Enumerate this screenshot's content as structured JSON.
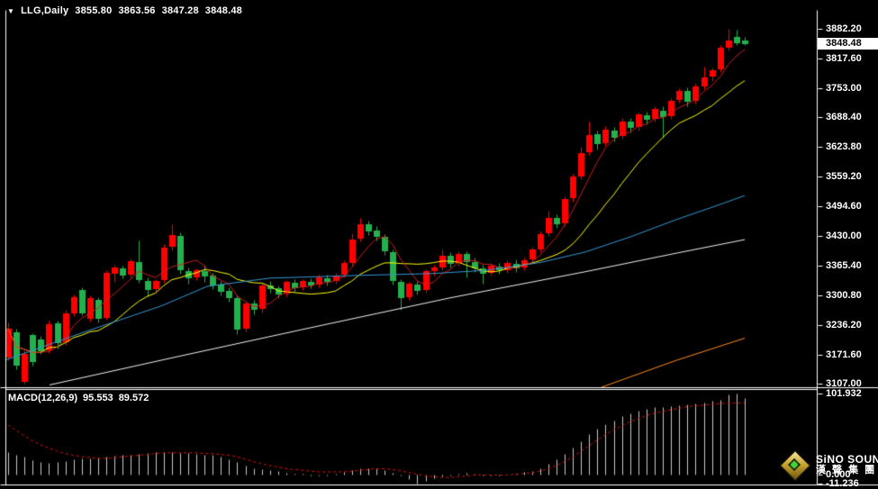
{
  "header": {
    "dropdown_arrow": "▼",
    "symbol": "LLG,Daily",
    "open": "3855.80",
    "high": "3863.56",
    "low": "3847.28",
    "close": "3848.48"
  },
  "macd_header": {
    "name": "MACD(12,26,9)",
    "main": "95.553",
    "signal": "89.572"
  },
  "price_axis": {
    "current_text": "3848.48",
    "current_value": 3848.48
  },
  "logo": {
    "line1": "SiNO SOUND",
    "line2": "漢 聲 集 團"
  },
  "chart_data": {
    "type": "candlestick+macd",
    "symbol": "LLG",
    "timeframe": "Daily",
    "grid": false,
    "price_axis_range": {
      "top": 3925.0,
      "bottom": 3100.0
    },
    "price_ticks": [
      {
        "text": "3882.20",
        "value": 3882.2
      },
      {
        "text": "3817.60",
        "value": 3817.6
      },
      {
        "text": "3753.00",
        "value": 3753.0
      },
      {
        "text": "3688.40",
        "value": 3688.4
      },
      {
        "text": "3623.80",
        "value": 3623.8
      },
      {
        "text": "3559.20",
        "value": 3559.2
      },
      {
        "text": "3494.60",
        "value": 3494.6
      },
      {
        "text": "3430.00",
        "value": 3430.0
      },
      {
        "text": "3365.40",
        "value": 3365.4
      },
      {
        "text": "3300.80",
        "value": 3300.8
      },
      {
        "text": "3236.20",
        "value": 3236.2
      },
      {
        "text": "3171.60",
        "value": 3171.6
      },
      {
        "text": "3107.00",
        "value": 3107.0
      }
    ],
    "current": {
      "open": 3855.8,
      "high": 3863.56,
      "low": 3847.28,
      "close": 3848.48
    },
    "candles": [
      [
        3165,
        3242,
        3158,
        3228
      ],
      [
        3220,
        3228,
        3140,
        3148
      ],
      [
        3112,
        3180,
        3107,
        3172
      ],
      [
        3213,
        3218,
        3148,
        3155
      ],
      [
        3205,
        3212,
        3172,
        3178
      ],
      [
        3180,
        3245,
        3175,
        3238
      ],
      [
        3240,
        3246,
        3185,
        3196
      ],
      [
        3198,
        3268,
        3192,
        3262
      ],
      [
        3262,
        3302,
        3255,
        3296
      ],
      [
        3312,
        3318,
        3258,
        3262
      ],
      [
        3250,
        3300,
        3244,
        3295
      ],
      [
        3290,
        3296,
        3242,
        3250
      ],
      [
        3252,
        3356,
        3248,
        3350
      ],
      [
        3348,
        3368,
        3330,
        3362
      ],
      [
        3360,
        3366,
        3338,
        3344
      ],
      [
        3346,
        3380,
        3340,
        3375
      ],
      [
        3374,
        3420,
        3328,
        3334
      ],
      [
        3332,
        3340,
        3298,
        3312
      ],
      [
        3314,
        3336,
        3306,
        3332
      ],
      [
        3334,
        3412,
        3328,
        3404
      ],
      [
        3406,
        3455,
        3398,
        3432
      ],
      [
        3430,
        3438,
        3348,
        3356
      ],
      [
        3354,
        3362,
        3326,
        3338
      ],
      [
        3340,
        3360,
        3334,
        3356
      ],
      [
        3354,
        3368,
        3330,
        3342
      ],
      [
        3344,
        3350,
        3315,
        3322
      ],
      [
        3324,
        3332,
        3300,
        3308
      ],
      [
        3310,
        3318,
        3286,
        3295
      ],
      [
        3294,
        3300,
        3215,
        3226
      ],
      [
        3228,
        3288,
        3222,
        3283
      ],
      [
        3282,
        3290,
        3260,
        3268
      ],
      [
        3270,
        3328,
        3264,
        3322
      ],
      [
        3322,
        3332,
        3306,
        3314
      ],
      [
        3316,
        3322,
        3294,
        3303
      ],
      [
        3304,
        3334,
        3298,
        3330
      ],
      [
        3328,
        3336,
        3308,
        3316
      ],
      [
        3318,
        3336,
        3312,
        3331
      ],
      [
        3330,
        3338,
        3316,
        3322
      ],
      [
        3324,
        3345,
        3318,
        3340
      ],
      [
        3338,
        3346,
        3322,
        3330
      ],
      [
        3332,
        3350,
        3326,
        3344
      ],
      [
        3346,
        3376,
        3340,
        3371
      ],
      [
        3372,
        3436,
        3366,
        3422
      ],
      [
        3424,
        3470,
        3418,
        3456
      ],
      [
        3456,
        3464,
        3432,
        3440
      ],
      [
        3442,
        3452,
        3420,
        3428
      ],
      [
        3428,
        3434,
        3388,
        3396
      ],
      [
        3394,
        3400,
        3324,
        3332
      ],
      [
        3330,
        3336,
        3268,
        3294
      ],
      [
        3296,
        3330,
        3290,
        3326
      ],
      [
        3324,
        3332,
        3302,
        3310
      ],
      [
        3312,
        3358,
        3306,
        3354
      ],
      [
        3354,
        3368,
        3344,
        3361
      ],
      [
        3362,
        3400,
        3356,
        3386
      ],
      [
        3386,
        3394,
        3362,
        3370
      ],
      [
        3372,
        3396,
        3366,
        3391
      ],
      [
        3390,
        3396,
        3340,
        3374
      ],
      [
        3374,
        3382,
        3352,
        3360
      ],
      [
        3360,
        3368,
        3325,
        3348
      ],
      [
        3350,
        3372,
        3344,
        3366
      ],
      [
        3364,
        3372,
        3348,
        3355
      ],
      [
        3356,
        3376,
        3350,
        3371
      ],
      [
        3370,
        3378,
        3352,
        3360
      ],
      [
        3362,
        3382,
        3356,
        3376
      ],
      [
        3378,
        3406,
        3372,
        3400
      ],
      [
        3400,
        3440,
        3395,
        3434
      ],
      [
        3436,
        3485,
        3430,
        3470
      ],
      [
        3470,
        3478,
        3448,
        3456
      ],
      [
        3458,
        3516,
        3452,
        3510
      ],
      [
        3512,
        3566,
        3505,
        3560
      ],
      [
        3560,
        3625,
        3554,
        3610
      ],
      [
        3612,
        3680,
        3606,
        3650
      ],
      [
        3652,
        3660,
        3618,
        3630
      ],
      [
        3632,
        3670,
        3626,
        3662
      ],
      [
        3660,
        3668,
        3636,
        3645
      ],
      [
        3648,
        3688,
        3642,
        3680
      ],
      [
        3680,
        3688,
        3656,
        3665
      ],
      [
        3668,
        3700,
        3660,
        3695
      ],
      [
        3694,
        3702,
        3674,
        3684
      ],
      [
        3686,
        3712,
        3680,
        3706
      ],
      [
        3704,
        3712,
        3645,
        3690
      ],
      [
        3692,
        3730,
        3686,
        3725
      ],
      [
        3726,
        3752,
        3720,
        3746
      ],
      [
        3746,
        3754,
        3712,
        3722
      ],
      [
        3724,
        3762,
        3718,
        3756
      ],
      [
        3756,
        3800,
        3750,
        3776
      ],
      [
        3778,
        3798,
        3768,
        3792
      ],
      [
        3794,
        3846,
        3788,
        3840
      ],
      [
        3840,
        3882,
        3834,
        3856
      ],
      [
        3864,
        3880,
        3846,
        3850
      ],
      [
        3855.8,
        3863.56,
        3847.28,
        3848.48
      ]
    ],
    "overlays": {
      "ma_fast": {
        "name": "ma-red-fast",
        "color": "#cc1f1f",
        "period": 5,
        "source": "sma_of_closes"
      },
      "ma_slow": {
        "name": "ma-yellow",
        "color": "#ffff00",
        "period": 13,
        "source": "sma_of_closes"
      },
      "ma_blue": {
        "name": "ma-blue",
        "color": "#3399d6",
        "points": [
          [
            7,
            3160
          ],
          [
            90,
            3218
          ],
          [
            180,
            3278
          ],
          [
            230,
            3320
          ],
          [
            300,
            3338
          ],
          [
            400,
            3344
          ],
          [
            480,
            3348
          ],
          [
            540,
            3355
          ],
          [
            600,
            3372
          ],
          [
            650,
            3395
          ],
          [
            700,
            3428
          ],
          [
            750,
            3465
          ],
          [
            790,
            3492
          ],
          [
            827,
            3518
          ]
        ]
      },
      "ma_white": {
        "name": "ma-white",
        "color": "#f2f2f2",
        "points": [
          [
            55,
            3105
          ],
          [
            200,
            3168
          ],
          [
            350,
            3232
          ],
          [
            500,
            3295
          ],
          [
            650,
            3352
          ],
          [
            750,
            3392
          ],
          [
            827,
            3422
          ]
        ]
      },
      "ma_orange": {
        "name": "ma-orange",
        "color": "#ff8c1a",
        "points": [
          [
            668,
            3100
          ],
          [
            750,
            3158
          ],
          [
            827,
            3207
          ]
        ]
      }
    },
    "macd": {
      "value_range": {
        "top": 106.0,
        "bottom": -11.7
      },
      "ticks": [
        {
          "text": "101.932",
          "value": 101.932
        },
        {
          "text": "0.000",
          "value": 0
        },
        {
          "text": "-11.236",
          "value": -11.236
        }
      ],
      "bar_color": "#c8c8c8",
      "signal_color": "#e01010",
      "hist": [
        28,
        25,
        22,
        18,
        15,
        14,
        15,
        17,
        19,
        20,
        20,
        21,
        22,
        23,
        24,
        25,
        26,
        27,
        28,
        28,
        28,
        27,
        27,
        26,
        25,
        24,
        22,
        19,
        15,
        11,
        8,
        6,
        5,
        4,
        2,
        1,
        1,
        -1,
        -2,
        -1,
        1,
        3,
        5,
        7,
        8,
        8,
        5,
        2,
        -2,
        -6,
        -11.2,
        -8,
        -5,
        -3,
        -1,
        1,
        2,
        1,
        -1,
        -2,
        -1,
        0,
        1,
        3,
        4,
        8,
        13,
        19,
        26,
        34,
        42,
        50,
        57,
        63,
        68,
        73,
        77,
        80,
        82,
        84,
        85,
        86,
        87,
        88,
        89,
        90,
        92,
        94,
        100,
        101.93,
        95.55
      ],
      "signal": [
        62,
        55,
        48,
        42,
        37,
        33,
        29,
        26,
        24,
        22,
        21,
        20,
        20,
        21,
        22,
        23,
        24,
        25,
        26,
        27,
        27,
        27,
        27,
        27,
        26,
        26,
        25,
        24,
        22,
        19,
        16,
        13,
        11,
        9,
        7,
        6,
        5,
        4,
        3,
        3,
        3,
        3,
        4,
        5,
        6,
        7,
        7,
        6,
        4,
        2,
        0,
        -2,
        -3,
        -4,
        -4,
        -3,
        -2,
        -1,
        -1,
        -1,
        -1,
        -1,
        0,
        1,
        2,
        4,
        7,
        11,
        16,
        22,
        29,
        36,
        43,
        50,
        56,
        61,
        66,
        70,
        74,
        77,
        79,
        81,
        83,
        85,
        86,
        87,
        88,
        89,
        89.3,
        89.5,
        89.57
      ]
    },
    "colors": {
      "up": "#ff0000",
      "down": "#22b14c",
      "background": "#000000",
      "border": "#ffffff",
      "axis_text": "#ffffff"
    }
  }
}
